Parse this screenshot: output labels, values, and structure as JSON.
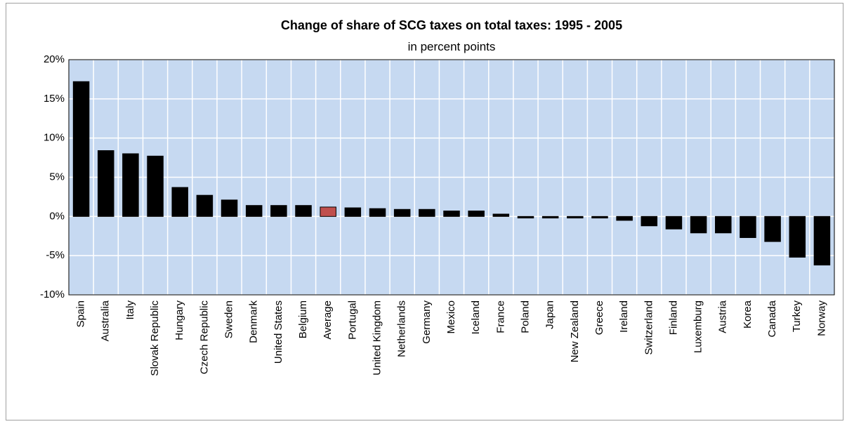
{
  "chart_data": {
    "type": "bar",
    "title": "Change of share of SCG taxes on total taxes: 1995 - 2005",
    "subtitle": "in percent points",
    "categories": [
      "Spain",
      "Australia",
      "Italy",
      "Slovak Republic",
      "Hungary",
      "Czech Republic",
      "Sweden",
      "Denmark",
      "United States",
      "Belgium",
      "Average",
      "Portugal",
      "United Kingdom",
      "Netherlands",
      "Germany",
      "Mexico",
      "Iceland",
      "France",
      "Poland",
      "Japan",
      "New Zealand",
      "Greece",
      "Ireland",
      "Switzerland",
      "Finland",
      "Luxemburg",
      "Austria",
      "Korea",
      "Canada",
      "Turkey",
      "Norway"
    ],
    "values": [
      17.2,
      8.4,
      8.0,
      7.7,
      3.7,
      2.7,
      2.1,
      1.4,
      1.4,
      1.4,
      1.2,
      1.1,
      1.0,
      0.9,
      0.9,
      0.7,
      0.7,
      0.3,
      -0.2,
      -0.2,
      -0.2,
      -0.2,
      -0.5,
      -1.2,
      -1.6,
      -2.1,
      -2.1,
      -2.7,
      -3.2,
      -5.2,
      -6.2
    ],
    "colors": [
      "#000000",
      "#000000",
      "#000000",
      "#000000",
      "#000000",
      "#000000",
      "#000000",
      "#000000",
      "#000000",
      "#000000",
      "#c0504d",
      "#000000",
      "#000000",
      "#000000",
      "#000000",
      "#000000",
      "#000000",
      "#000000",
      "#000000",
      "#000000",
      "#000000",
      "#000000",
      "#000000",
      "#000000",
      "#000000",
      "#000000",
      "#000000",
      "#000000",
      "#000000",
      "#000000",
      "#000000"
    ],
    "ylim": [
      -10,
      20
    ],
    "yticks": [
      {
        "value": -10,
        "label": "-10%"
      },
      {
        "value": -5,
        "label": "-5%"
      },
      {
        "value": 0,
        "label": "0%"
      },
      {
        "value": 5,
        "label": "5%"
      },
      {
        "value": 10,
        "label": "10%"
      },
      {
        "value": 15,
        "label": "15%"
      },
      {
        "value": 20,
        "label": "20%"
      }
    ],
    "grid": true,
    "plot_background": "#c6d9f1"
  }
}
